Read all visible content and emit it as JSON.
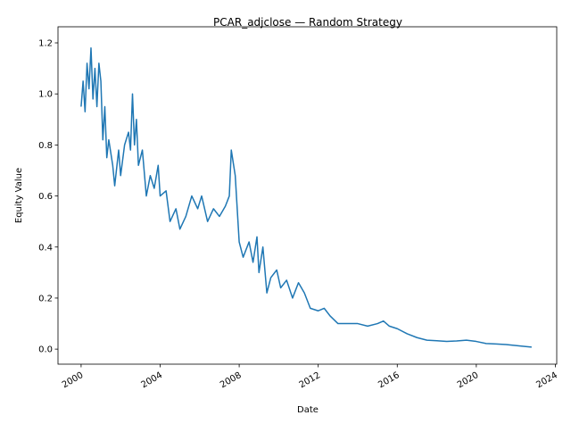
{
  "chart_data": {
    "type": "line",
    "title": "PCAR_adjclose — Random Strategy",
    "x_label": "Date",
    "y_label": "Equity Value",
    "x": [
      2000.0,
      2000.1,
      2000.2,
      2000.3,
      2000.4,
      2000.5,
      2000.6,
      2000.7,
      2000.8,
      2000.9,
      2001.0,
      2001.1,
      2001.2,
      2001.3,
      2001.4,
      2001.6,
      2001.7,
      2001.9,
      2002.0,
      2002.2,
      2002.4,
      2002.5,
      2002.6,
      2002.7,
      2002.8,
      2002.9,
      2003.1,
      2003.3,
      2003.5,
      2003.7,
      2003.9,
      2004.0,
      2004.3,
      2004.5,
      2004.8,
      2005.0,
      2005.3,
      2005.6,
      2005.9,
      2006.1,
      2006.4,
      2006.7,
      2007.0,
      2007.3,
      2007.5,
      2007.6,
      2007.8,
      2008.0,
      2008.2,
      2008.5,
      2008.7,
      2008.9,
      2009.0,
      2009.2,
      2009.4,
      2009.6,
      2009.9,
      2010.1,
      2010.4,
      2010.7,
      2011.0,
      2011.3,
      2011.6,
      2012.0,
      2012.3,
      2012.6,
      2013.0,
      2013.5,
      2014.0,
      2014.5,
      2015.0,
      2015.3,
      2015.6,
      2016.0,
      2016.5,
      2017.0,
      2017.5,
      2018.0,
      2018.5,
      2019.0,
      2019.5,
      2020.0,
      2020.5,
      2021.0,
      2021.5,
      2022.0,
      2022.5,
      2022.8
    ],
    "series": [
      {
        "name": "PCAR_adjclose",
        "color": "#1f77b4",
        "values": [
          0.95,
          1.05,
          0.93,
          1.12,
          1.02,
          1.18,
          0.98,
          1.1,
          0.95,
          1.12,
          1.05,
          0.82,
          0.95,
          0.75,
          0.82,
          0.72,
          0.64,
          0.78,
          0.68,
          0.8,
          0.85,
          0.78,
          1.0,
          0.8,
          0.9,
          0.72,
          0.78,
          0.6,
          0.68,
          0.63,
          0.72,
          0.6,
          0.62,
          0.5,
          0.55,
          0.47,
          0.52,
          0.6,
          0.55,
          0.6,
          0.5,
          0.55,
          0.52,
          0.56,
          0.6,
          0.78,
          0.68,
          0.42,
          0.36,
          0.42,
          0.34,
          0.44,
          0.3,
          0.4,
          0.22,
          0.28,
          0.31,
          0.24,
          0.27,
          0.2,
          0.26,
          0.22,
          0.16,
          0.15,
          0.16,
          0.13,
          0.1,
          0.1,
          0.1,
          0.09,
          0.1,
          0.11,
          0.09,
          0.08,
          0.06,
          0.045,
          0.035,
          0.033,
          0.03,
          0.032,
          0.035,
          0.03,
          0.022,
          0.02,
          0.018,
          0.014,
          0.01,
          0.008
        ]
      }
    ],
    "xlim": [
      1998.83,
      2024.07
    ],
    "xticks": [
      2000,
      2004,
      2008,
      2012,
      2016,
      2020,
      2024
    ],
    "ylim": [
      -0.059,
      1.263
    ],
    "yticks": [
      {
        "value": 0,
        "label": "0.0"
      },
      0.2,
      0.4,
      0.6,
      0.8,
      {
        "value": 1,
        "label": "1.0"
      },
      1.2
    ]
  }
}
